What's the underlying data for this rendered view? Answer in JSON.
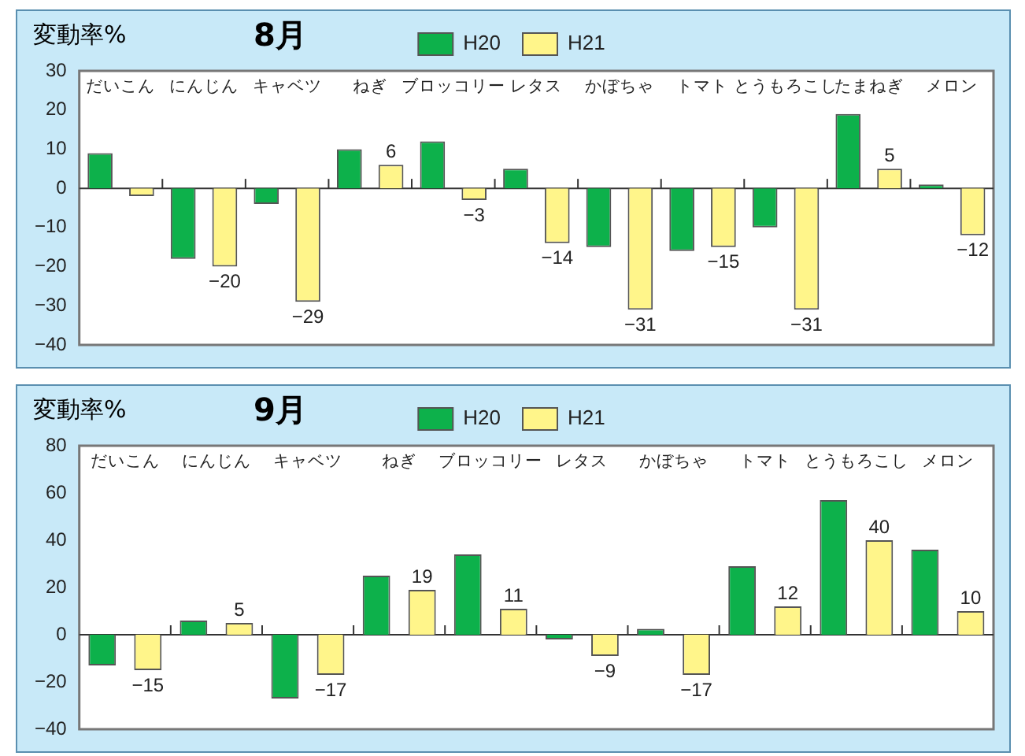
{
  "chart_data": [
    {
      "type": "bar",
      "title": "8月",
      "ylabel": "変動率%",
      "legend": "top",
      "categories": [
        "だいこん",
        "にんじん",
        "キャベツ",
        "ねぎ",
        "ブロッコリー",
        "レタス",
        "かぼちゃ",
        "トマト",
        "とうもろこし",
        "たまねぎ",
        "メロン"
      ],
      "series": [
        {
          "name": "H20",
          "color": "#0db14b",
          "values": [
            9,
            -18,
            -4,
            10,
            12,
            5,
            -15,
            -16,
            -10,
            19,
            1
          ]
        },
        {
          "name": "H21",
          "color": "#fff58a",
          "values": [
            -2,
            -20,
            -29,
            6,
            -3,
            -14,
            -31,
            -15,
            -31,
            5,
            -12
          ],
          "value_labels": [
            null,
            "−20",
            "−29",
            "6",
            "−3",
            "−14",
            "−31",
            "−15",
            "−31",
            "5",
            "−12"
          ]
        }
      ],
      "ylim": [
        -40,
        30
      ],
      "yticks": [
        {
          "value": -40,
          "label": "−40"
        },
        {
          "value": -30,
          "label": "−30"
        },
        {
          "value": -20,
          "label": "−20"
        },
        {
          "value": -10,
          "label": "−10"
        },
        0,
        10,
        20,
        30
      ]
    },
    {
      "type": "bar",
      "title": "9月",
      "ylabel": "変動率%",
      "legend": "top",
      "categories": [
        "だいこん",
        "にんじん",
        "キャベツ",
        "ねぎ",
        "ブロッコリー",
        "レタス",
        "かぼちゃ",
        "トマト",
        "とうもろこし",
        "メロン"
      ],
      "series": [
        {
          "name": "H20",
          "color": "#0db14b",
          "values": [
            -13,
            6,
            -27,
            25,
            34,
            -2,
            2.5,
            29,
            57,
            36
          ]
        },
        {
          "name": "H21",
          "color": "#fff58a",
          "values": [
            -15,
            5,
            -17,
            19,
            11,
            -9,
            -17,
            12,
            40,
            10
          ],
          "value_labels": [
            "−15",
            "5",
            "−17",
            "19",
            "11",
            "−9",
            "−17",
            "12",
            "40",
            "10"
          ]
        }
      ],
      "ylim": [
        -40,
        80
      ],
      "yticks": [
        {
          "value": -40,
          "label": "−40"
        },
        {
          "value": -20,
          "label": "−20"
        },
        0,
        20,
        40,
        60,
        80
      ]
    }
  ]
}
